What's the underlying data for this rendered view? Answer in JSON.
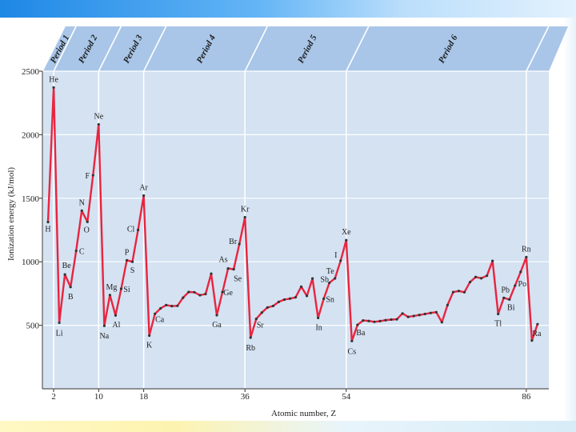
{
  "chart_data": {
    "type": "line",
    "title": "",
    "xlabel": "Atomic number, Z",
    "ylabel": "Ionization energy (kJ/mol)",
    "xlim": [
      0,
      90
    ],
    "ylim": [
      0,
      2500
    ],
    "x_ticks": [
      2,
      10,
      18,
      36,
      54,
      86
    ],
    "y_ticks": [
      500,
      1000,
      1500,
      2000,
      2500
    ],
    "grid": true,
    "line_color": "#e8253f",
    "plot_bg": "#d4e2f2",
    "period_bg": "#a9c6e8",
    "periods": [
      {
        "label": "Period 1",
        "start": 1,
        "end": 2
      },
      {
        "label": "Period 2",
        "start": 3,
        "end": 10
      },
      {
        "label": "Period 3",
        "start": 11,
        "end": 18
      },
      {
        "label": "Period 4",
        "start": 19,
        "end": 36
      },
      {
        "label": "Period 5",
        "start": 37,
        "end": 54
      },
      {
        "label": "Period 6",
        "start": 55,
        "end": 86
      }
    ],
    "x": [
      1,
      2,
      3,
      4,
      5,
      6,
      7,
      8,
      9,
      10,
      11,
      12,
      13,
      14,
      15,
      16,
      17,
      18,
      19,
      20,
      21,
      22,
      23,
      24,
      25,
      26,
      27,
      28,
      29,
      30,
      31,
      32,
      33,
      34,
      35,
      36,
      37,
      38,
      39,
      40,
      41,
      42,
      43,
      44,
      45,
      46,
      47,
      48,
      49,
      50,
      51,
      52,
      53,
      54,
      55,
      56,
      57,
      58,
      59,
      60,
      61,
      62,
      63,
      64,
      65,
      66,
      67,
      68,
      69,
      70,
      71,
      72,
      73,
      74,
      75,
      76,
      77,
      78,
      79,
      80,
      81,
      82,
      83,
      84,
      85,
      86,
      87,
      88
    ],
    "y": [
      1312,
      2372,
      520,
      900,
      801,
      1086,
      1402,
      1314,
      1681,
      2081,
      496,
      738,
      578,
      787,
      1012,
      1000,
      1251,
      1521,
      419,
      590,
      633,
      659,
      651,
      653,
      717,
      762,
      760,
      737,
      746,
      906,
      579,
      762,
      947,
      941,
      1140,
      1351,
      403,
      550,
      600,
      640,
      652,
      684,
      702,
      710,
      720,
      804,
      731,
      868,
      558,
      709,
      834,
      869,
      1008,
      1170,
      376,
      503,
      538,
      534,
      527,
      533,
      540,
      545,
      547,
      593,
      566,
      573,
      581,
      589,
      597,
      603,
      524,
      659,
      761,
      770,
      760,
      840,
      880,
      870,
      890,
      1007,
      589,
      716,
      703,
      812,
      920,
      1037,
      380,
      509
    ],
    "point_labels": [
      {
        "text": "H",
        "z": 1,
        "dx": 0,
        "dy": 12
      },
      {
        "text": "He",
        "z": 2,
        "dx": 0,
        "dy": -7
      },
      {
        "text": "Li",
        "z": 3,
        "dx": 0,
        "dy": 16
      },
      {
        "text": "Be",
        "z": 4,
        "dx": 2,
        "dy": -8
      },
      {
        "text": "B",
        "z": 5,
        "dx": 0,
        "dy": 15
      },
      {
        "text": "C",
        "z": 6,
        "dx": 7,
        "dy": 4
      },
      {
        "text": "N",
        "z": 7,
        "dx": 0,
        "dy": -7
      },
      {
        "text": "O",
        "z": 8,
        "dx": -1,
        "dy": 13
      },
      {
        "text": "F",
        "z": 9,
        "dx": -7,
        "dy": 4
      },
      {
        "text": "Ne",
        "z": 10,
        "dx": 0,
        "dy": -7
      },
      {
        "text": "Na",
        "z": 11,
        "dx": 0,
        "dy": 16
      },
      {
        "text": "Mg",
        "z": 12,
        "dx": 2,
        "dy": -7
      },
      {
        "text": "Al",
        "z": 13,
        "dx": 1,
        "dy": 15
      },
      {
        "text": "Si",
        "z": 14,
        "dx": 7,
        "dy": 4
      },
      {
        "text": "P",
        "z": 15,
        "dx": 0,
        "dy": -7
      },
      {
        "text": "S",
        "z": 16,
        "dx": 0,
        "dy": 14
      },
      {
        "text": "Cl",
        "z": 17,
        "dx": -9,
        "dy": 2
      },
      {
        "text": "Ar",
        "z": 18,
        "dx": 0,
        "dy": -7
      },
      {
        "text": "K",
        "z": 19,
        "dx": 0,
        "dy": 15
      },
      {
        "text": "Ca",
        "z": 20,
        "dx": 6,
        "dy": 10
      },
      {
        "text": "Ga",
        "z": 31,
        "dx": 0,
        "dy": 15
      },
      {
        "text": "Ge",
        "z": 32,
        "dx": 7,
        "dy": 4
      },
      {
        "text": "As",
        "z": 33,
        "dx": -6,
        "dy": -8
      },
      {
        "text": "Se",
        "z": 34,
        "dx": 5,
        "dy": 15
      },
      {
        "text": "Br",
        "z": 35,
        "dx": -8,
        "dy": 0
      },
      {
        "text": "Kr",
        "z": 36,
        "dx": 0,
        "dy": -7
      },
      {
        "text": "Rb",
        "z": 37,
        "dx": 0,
        "dy": 16
      },
      {
        "text": "Sr",
        "z": 38,
        "dx": 5,
        "dy": 11
      },
      {
        "text": "In",
        "z": 49,
        "dx": 1,
        "dy": 15
      },
      {
        "text": "Sn",
        "z": 50,
        "dx": 8,
        "dy": 4
      },
      {
        "text": "Sb",
        "z": 51,
        "dx": -6,
        "dy": -1
      },
      {
        "text": "Te",
        "z": 52,
        "dx": -6,
        "dy": -6
      },
      {
        "text": "I",
        "z": 53,
        "dx": -6,
        "dy": -4
      },
      {
        "text": "Xe",
        "z": 54,
        "dx": 0,
        "dy": -7
      },
      {
        "text": "Cs",
        "z": 55,
        "dx": 0,
        "dy": 16
      },
      {
        "text": "Ba",
        "z": 56,
        "dx": 4,
        "dy": 13
      },
      {
        "text": "Tl",
        "z": 81,
        "dx": 0,
        "dy": 15
      },
      {
        "text": "Pb",
        "z": 82,
        "dx": 2,
        "dy": -7
      },
      {
        "text": "Bi",
        "z": 83,
        "dx": 2,
        "dy": 13
      },
      {
        "text": "Po",
        "z": 84,
        "dx": 9,
        "dy": 1
      },
      {
        "text": "Rn",
        "z": 86,
        "dx": 0,
        "dy": -7
      },
      {
        "text": "Ra",
        "z": 88,
        "dx": -1,
        "dy": 15
      }
    ]
  }
}
